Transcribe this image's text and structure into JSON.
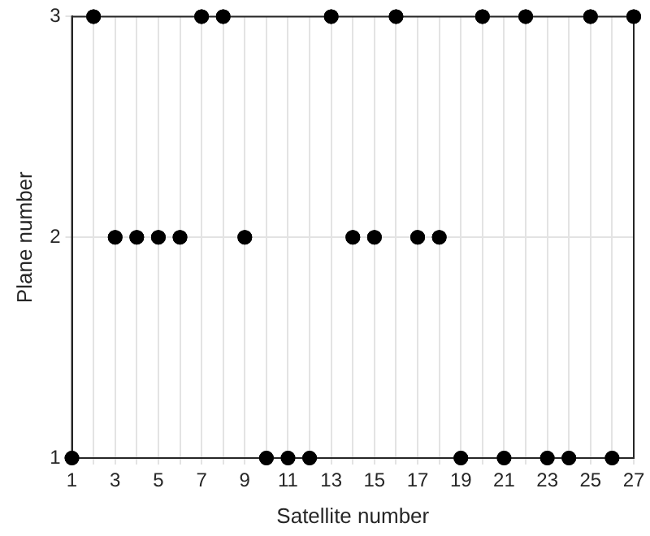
{
  "chart_data": {
    "type": "scatter",
    "xlabel": "Satellite number",
    "ylabel": "Plane number",
    "x": [
      1,
      2,
      3,
      4,
      5,
      6,
      7,
      8,
      9,
      10,
      11,
      12,
      13,
      14,
      15,
      16,
      17,
      18,
      19,
      20,
      21,
      22,
      23,
      24,
      25,
      26,
      27
    ],
    "series": [
      {
        "color": "#000000",
        "values": [
          1,
          3,
          2,
          2,
          2,
          2,
          3,
          3,
          2,
          1,
          1,
          1,
          3,
          2,
          2,
          3,
          2,
          2,
          1,
          3,
          1,
          3,
          1,
          1,
          3,
          1,
          3
        ]
      }
    ],
    "xlim": [
      1,
      27
    ],
    "xticks": [
      1,
      {
        "value": 2,
        "label": null
      },
      3,
      {
        "value": 4,
        "label": null
      },
      5,
      {
        "value": 6,
        "label": null
      },
      7,
      {
        "value": 8,
        "label": null
      },
      9,
      {
        "value": 10,
        "label": null
      },
      11,
      {
        "value": 12,
        "label": null
      },
      13,
      {
        "value": 14,
        "label": null
      },
      15,
      {
        "value": 16,
        "label": null
      },
      17,
      {
        "value": 18,
        "label": null
      },
      19,
      {
        "value": 20,
        "label": null
      },
      21,
      {
        "value": 22,
        "label": null
      },
      23,
      {
        "value": 24,
        "label": null
      },
      25,
      {
        "value": 26,
        "label": null
      },
      27
    ],
    "ylim": [
      1,
      3
    ],
    "yticks": [
      1,
      2,
      3
    ],
    "grid": true,
    "legend": false,
    "marker": "circle"
  }
}
